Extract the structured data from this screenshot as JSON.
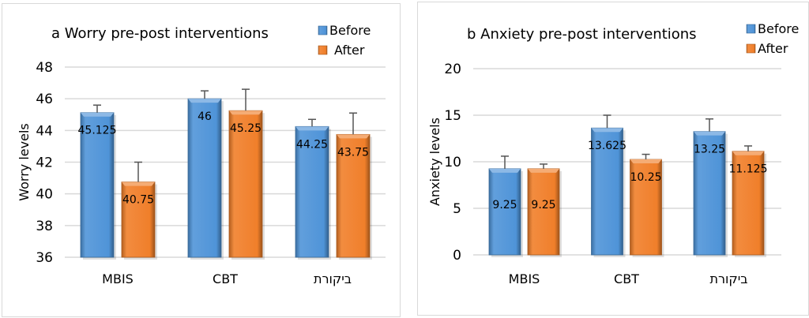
{
  "chart_data": [
    {
      "type": "bar",
      "title": "a Worry pre-post interventions",
      "xlabel": "",
      "ylabel": "Worry levels",
      "categories": [
        "MBIS",
        "CBT",
        "ביקורת"
      ],
      "ylim": [
        36,
        48
      ],
      "yticks": [
        36,
        38,
        40,
        42,
        44,
        46,
        48
      ],
      "grid": true,
      "legend_position": "top-right",
      "series": [
        {
          "name": "Before",
          "color": "#4f94d8",
          "values": [
            45.125,
            46,
            44.25
          ],
          "labels": [
            "45.125",
            "46",
            "44.25"
          ],
          "error_upper": [
            45.6,
            46.5,
            44.7
          ]
        },
        {
          "name": "After",
          "color": "#f07f2a",
          "values": [
            40.75,
            45.25,
            43.75
          ],
          "labels": [
            "40.75",
            "45.25",
            "43.75"
          ],
          "error_upper": [
            42.0,
            46.6,
            45.1
          ]
        }
      ]
    },
    {
      "type": "bar",
      "title": "b Anxiety pre-post interventions",
      "xlabel": "",
      "ylabel": "Anxiety levels",
      "categories": [
        "MBIS",
        "CBT",
        "ביקורת"
      ],
      "ylim": [
        0,
        20
      ],
      "yticks": [
        0,
        5,
        10,
        15,
        20
      ],
      "grid": true,
      "legend_position": "top-right",
      "series": [
        {
          "name": "Before",
          "color": "#4f94d8",
          "values": [
            9.25,
            13.625,
            13.25
          ],
          "labels": [
            "9.25",
            "13.625",
            "13.25"
          ],
          "error_upper": [
            10.6,
            15.0,
            14.6
          ]
        },
        {
          "name": "After",
          "color": "#f07f2a",
          "values": [
            9.25,
            10.25,
            11.125
          ],
          "labels": [
            "9.25",
            "10.25",
            "11.125"
          ],
          "error_upper": [
            9.75,
            10.8,
            11.7
          ]
        }
      ]
    }
  ]
}
